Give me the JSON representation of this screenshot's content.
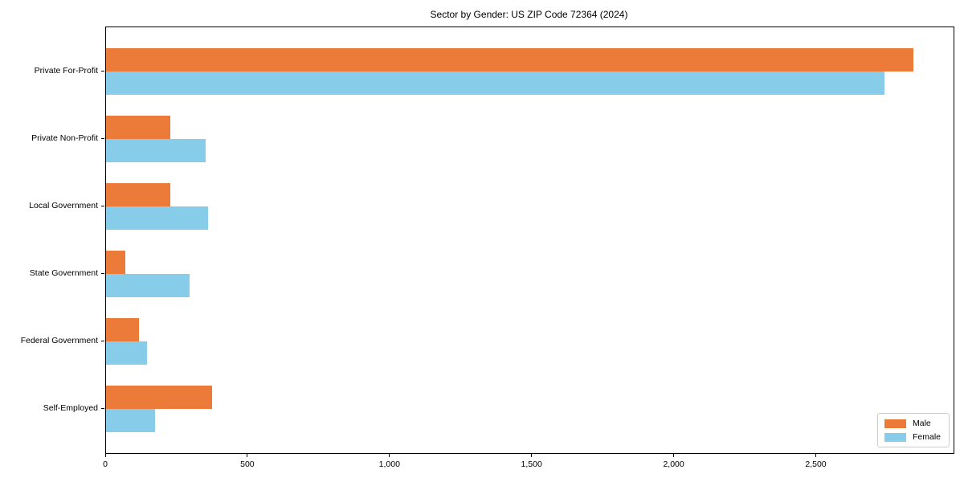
{
  "chart_data": {
    "type": "bar",
    "orientation": "horizontal",
    "title": "Sector by Gender: US ZIP Code 72364 (2024)",
    "categories": [
      "Private For-Profit",
      "Private Non-Profit",
      "Local Government",
      "State Government",
      "Federal Government",
      "Self-Employed"
    ],
    "series": [
      {
        "name": "Male",
        "color": "#ec7b39",
        "values": [
          2840,
          225,
          225,
          67,
          116,
          372
        ]
      },
      {
        "name": "Female",
        "color": "#87cdea",
        "values": [
          2740,
          350,
          360,
          295,
          145,
          172
        ]
      }
    ],
    "xlabel": "",
    "ylabel": "",
    "xlim": [
      0,
      2982
    ],
    "xticks": [
      0,
      500,
      1000,
      1500,
      2000,
      2500
    ],
    "xtick_labels": [
      "0",
      "500",
      "1,000",
      "1,500",
      "2,000",
      "2,500"
    ],
    "grid": false,
    "legend_position": "lower right",
    "frame": true,
    "colors": {
      "axis": "#000000",
      "background": "#ffffff",
      "legend_border": "#cccccc"
    }
  }
}
